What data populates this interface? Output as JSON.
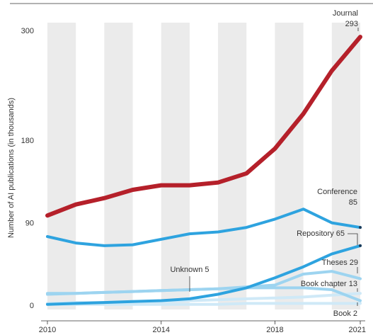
{
  "chart_data": {
    "type": "line",
    "ylabel": "Number of AI publications (in thousands)",
    "xlim": [
      2010,
      2021
    ],
    "ylim": [
      0,
      300
    ],
    "x_ticks": [
      2010,
      2014,
      2018,
      2021
    ],
    "y_ticks": [
      0,
      90,
      180,
      300
    ],
    "grid": "alternating vertical bands",
    "x": [
      2010,
      2011,
      2012,
      2013,
      2014,
      2015,
      2016,
      2017,
      2018,
      2019,
      2020,
      2021
    ],
    "series": [
      {
        "name": "Journal",
        "color": "#b5202a",
        "values": [
          98,
          110,
          117,
          126,
          131,
          131,
          134,
          144,
          171,
          209,
          256,
          293
        ]
      },
      {
        "name": "Conference",
        "color": "#2ea3df",
        "values": [
          75,
          68,
          65,
          66,
          72,
          78,
          80,
          85,
          94,
          105,
          90,
          85
        ]
      },
      {
        "name": "Repository",
        "color": "#2ea3df",
        "values": [
          1,
          2,
          3,
          4,
          5,
          7,
          12,
          19,
          30,
          42,
          56,
          65
        ]
      },
      {
        "name": "Theses",
        "color": "#9dd4f0",
        "values": [
          12,
          13,
          14,
          15,
          16,
          17,
          18,
          20,
          22,
          34,
          37,
          29
        ]
      },
      {
        "name": "Unknown",
        "color": "#9dd4f0",
        "values": [
          13,
          13,
          14,
          15,
          16,
          17,
          18,
          19,
          19,
          19,
          17,
          5
        ]
      },
      {
        "name": "Book chapter",
        "color": "#cfe9f7",
        "values": [
          2,
          3,
          3,
          4,
          4,
          5,
          6,
          7,
          8,
          9,
          11,
          13
        ]
      },
      {
        "name": "Book",
        "color": "#cfe9f7",
        "values": [
          1,
          1,
          1,
          1,
          1,
          1,
          1,
          2,
          2,
          2,
          2,
          2
        ]
      }
    ],
    "annotations": [
      {
        "series": "Journal",
        "lines": [
          "Journal",
          "293"
        ]
      },
      {
        "series": "Conference",
        "lines": [
          "Conference",
          "85"
        ]
      },
      {
        "series": "Repository",
        "lines": [
          "Repository 65"
        ]
      },
      {
        "series": "Theses",
        "lines": [
          "Theses 29"
        ]
      },
      {
        "series": "Book chapter",
        "lines": [
          "Book chapter 13"
        ]
      },
      {
        "series": "Unknown",
        "lines": [
          "Unknown 5"
        ]
      },
      {
        "series": "Book",
        "lines": [
          "Book 2"
        ]
      }
    ]
  }
}
